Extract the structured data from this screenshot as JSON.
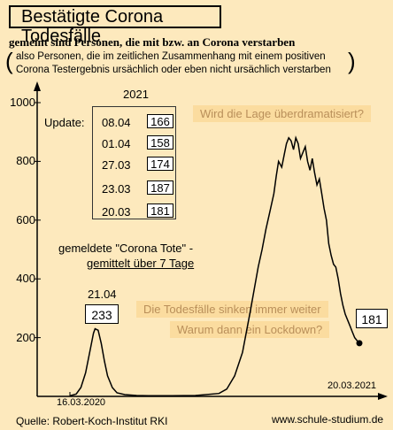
{
  "header": {
    "title": "Bestätigte Corona Todesfälle",
    "subtitle": "gemeint sind Personen, die mit bzw. an Corona verstarben",
    "note_line1": "also Personen, die im zeitlichen Zusammenhang mit einem positiven",
    "note_line2": "Corona Testergebnis ursächlich oder eben nicht ursächlich verstarben"
  },
  "update_table": {
    "year": "2021",
    "label": "Update:",
    "rows": [
      {
        "date": "08.04",
        "value": "166"
      },
      {
        "date": "01.04",
        "value": "158"
      },
      {
        "date": "27.03",
        "value": "174"
      },
      {
        "date": "23.03",
        "value": "187"
      },
      {
        "date": "20.03",
        "value": "181"
      }
    ]
  },
  "annotations": {
    "question": "Wird die Lage überdramatisiert?",
    "falling_line1": "Die Todesfälle sinken immer weiter",
    "falling_line2": "Warum dann ein Lockdown?",
    "reported_line1": "gemeldete \"Corona Tote\" -",
    "reported_line2": "gemittelt über 7 Tage",
    "peak1_date": "21.04",
    "peak1_value": "233",
    "last_value": "181"
  },
  "footer": {
    "source": "Quelle: Robert-Koch-Institut RKI",
    "website": "www.schule-studium.de"
  },
  "chart_data": {
    "type": "line",
    "x_start_label": "16.03.2020",
    "x_end_label": "20.03.2021",
    "x_start_index": 0,
    "x_end_index": 369,
    "ylim": [
      0,
      1000
    ],
    "yticks": [
      200,
      400,
      600,
      800,
      1000
    ],
    "grid": false,
    "series": [
      {
        "x": [
          0,
          8,
          14,
          20,
          26,
          30,
          32,
          36,
          40,
          44,
          48,
          54,
          60,
          70,
          85,
          100,
          130,
          160,
          190,
          200,
          210,
          220,
          230,
          240,
          245,
          250,
          255,
          260,
          263,
          266,
          270,
          273,
          276,
          279,
          282,
          285,
          288,
          291,
          294,
          297,
          300,
          303,
          306,
          309,
          312,
          315,
          318,
          321,
          324,
          327,
          330,
          333,
          336,
          339,
          342,
          345,
          348,
          351,
          354,
          357,
          360,
          363,
          366,
          369
        ],
        "y": [
          2,
          8,
          30,
          80,
          160,
          215,
          230,
          225,
          180,
          120,
          70,
          30,
          12,
          6,
          3,
          2,
          2,
          3,
          10,
          25,
          70,
          150,
          290,
          440,
          500,
          570,
          630,
          690,
          750,
          800,
          780,
          820,
          860,
          880,
          870,
          840,
          880,
          860,
          810,
          830,
          850,
          800,
          770,
          810,
          760,
          720,
          740,
          690,
          640,
          600,
          520,
          480,
          450,
          440,
          400,
          350,
          310,
          280,
          260,
          240,
          220,
          200,
          190,
          181
        ]
      }
    ]
  }
}
